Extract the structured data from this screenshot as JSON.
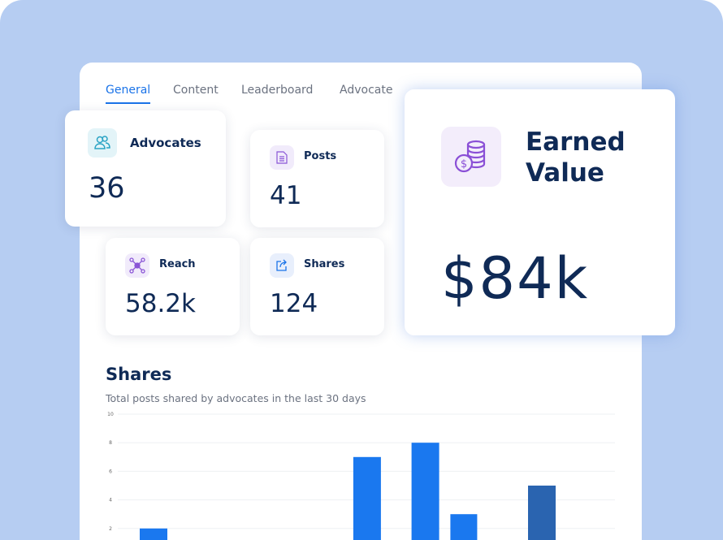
{
  "tabs": [
    {
      "label": "General",
      "active": true
    },
    {
      "label": "Content"
    },
    {
      "label": "Leaderboard"
    },
    {
      "label": "Advocate"
    }
  ],
  "cards": {
    "advocates": {
      "label": "Advocates",
      "value": "36",
      "icon": "users-icon"
    },
    "posts": {
      "label": "Posts",
      "value": "41",
      "icon": "document-icon"
    },
    "reach": {
      "label": "Reach",
      "value": "58.2k",
      "icon": "network-icon"
    },
    "shares": {
      "label": "Shares",
      "value": "124",
      "icon": "share-icon"
    },
    "earned": {
      "label_line1": "Earned",
      "label_line2": "Value",
      "value": "$84k",
      "icon": "coins-icon"
    }
  },
  "colors": {
    "background": "#b6cdf2",
    "accent": "#1a73e8",
    "bar": "#1a78ef",
    "bar_highlight": "#2a64b0",
    "text_dark": "#0f2a56"
  },
  "chart_data": {
    "type": "bar",
    "title": "Shares",
    "subtitle": "Total posts shared by advocates in the last 30 days",
    "ylim": [
      0,
      10
    ],
    "yticks": [
      "2",
      "4",
      "6",
      "8",
      "10"
    ],
    "grid": true,
    "values": [
      2,
      0,
      0,
      0,
      0,
      0,
      0,
      0,
      0,
      0,
      0,
      7,
      0,
      0,
      8,
      0,
      3,
      0,
      0,
      0,
      5,
      0,
      0,
      0,
      0
    ],
    "highlight_index": 20
  }
}
